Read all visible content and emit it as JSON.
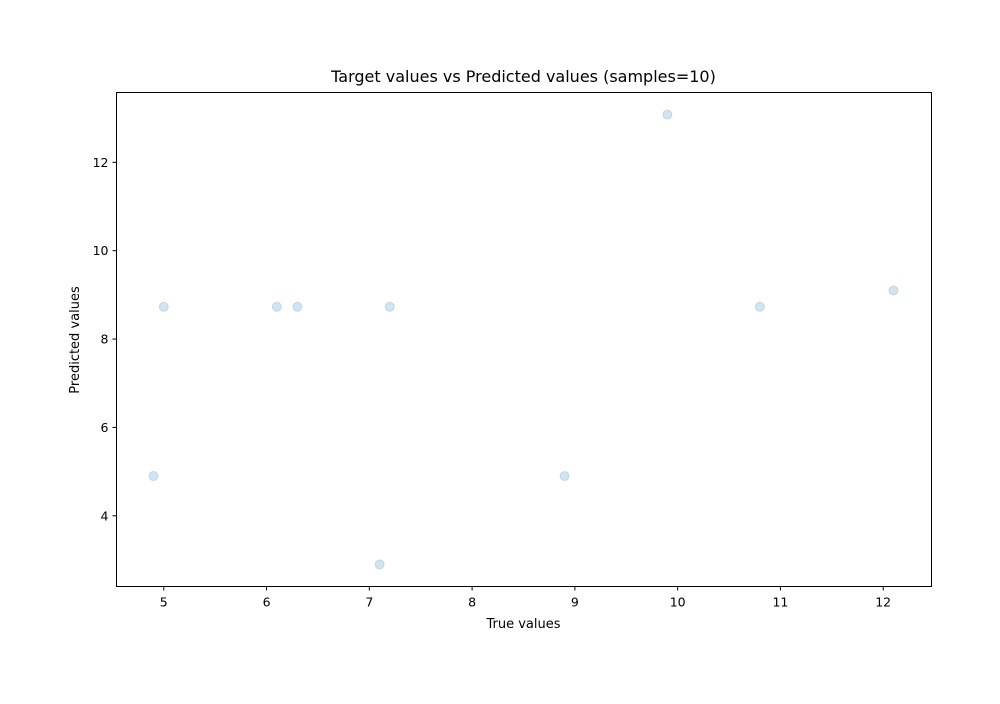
{
  "chart_data": {
    "type": "scatter",
    "title": "Target values vs Predicted values (samples=10)",
    "xlabel": "True values",
    "ylabel": "Predicted values",
    "xlim": [
      4.54,
      12.47
    ],
    "ylim": [
      2.4,
      13.58
    ],
    "xticks": [
      5,
      6,
      7,
      8,
      9,
      10,
      11,
      12
    ],
    "yticks": [
      4,
      6,
      8,
      10,
      12
    ],
    "grid": false,
    "marker_color": "#1f77b4",
    "marker_alpha": 0.2,
    "points": [
      {
        "x": 4.9,
        "y": 4.9
      },
      {
        "x": 5.0,
        "y": 8.73
      },
      {
        "x": 6.1,
        "y": 8.73
      },
      {
        "x": 6.3,
        "y": 8.73
      },
      {
        "x": 7.1,
        "y": 2.9
      },
      {
        "x": 7.2,
        "y": 8.73
      },
      {
        "x": 8.9,
        "y": 4.9
      },
      {
        "x": 9.9,
        "y": 13.08
      },
      {
        "x": 10.8,
        "y": 8.73
      },
      {
        "x": 12.1,
        "y": 9.1
      }
    ]
  }
}
